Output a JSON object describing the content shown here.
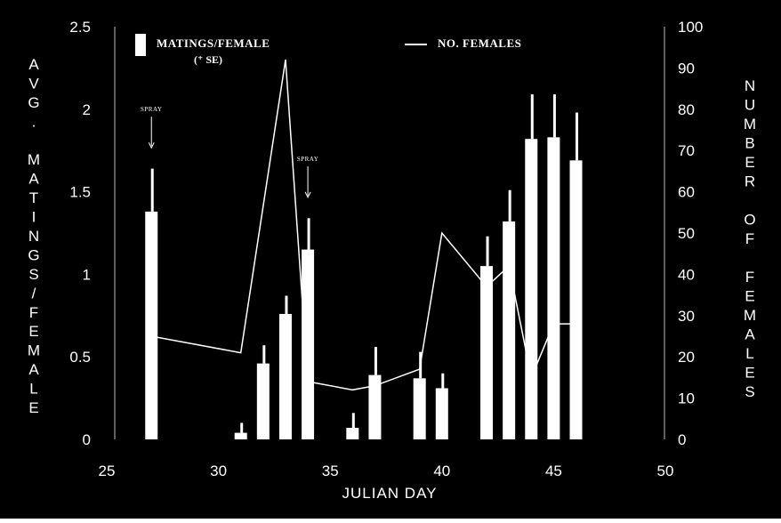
{
  "chart_data": {
    "type": "bar",
    "xlabel": "JULIAN DAY",
    "ylabel_left": "AVG. MATINGS/FEMALE",
    "ylabel_right": "NUMBER OF FEMALES",
    "xlim": [
      25,
      50
    ],
    "x_ticks": [
      "25",
      "30",
      "35",
      "40",
      "45",
      "50"
    ],
    "ylim_left": [
      0,
      2.5
    ],
    "y_ticks_left": [
      "0",
      "0.5",
      "1",
      "1.5",
      "2",
      "2.5"
    ],
    "ylim_right": [
      0,
      100
    ],
    "y_ticks_right": [
      "0",
      "10",
      "20",
      "30",
      "40",
      "50",
      "60",
      "70",
      "80",
      "90",
      "100"
    ],
    "grid": false,
    "legend_position": "top",
    "legend": {
      "bars_label": "MATINGS/FEMALE",
      "bars_sublabel": "(⁺ SE)",
      "line_label": "NO. FEMALES"
    },
    "annotations": [
      {
        "text": "SPRAY",
        "x": 27,
        "y": 1.75
      },
      {
        "text": "SPRAY",
        "x": 34,
        "y": 1.45
      }
    ],
    "series": [
      {
        "name": "MATINGS/FEMALE",
        "axis": "left",
        "kind": "bar",
        "x": [
          27,
          31,
          32,
          33,
          34,
          36,
          37,
          39,
          40,
          42,
          43,
          44,
          45,
          46
        ],
        "values": [
          1.38,
          0.04,
          0.46,
          0.76,
          1.15,
          0.07,
          0.39,
          0.37,
          0.31,
          1.05,
          1.32,
          1.82,
          1.83,
          1.69
        ],
        "se": [
          0.26,
          0.06,
          0.11,
          0.11,
          0.19,
          0.09,
          0.17,
          0.16,
          0.09,
          0.18,
          0.19,
          0.27,
          0.26,
          0.29
        ]
      },
      {
        "name": "NO. FEMALES",
        "axis": "right",
        "kind": "line",
        "x": [
          27,
          31,
          33,
          34,
          36,
          37,
          39,
          40,
          42,
          43,
          44,
          45,
          46
        ],
        "values": [
          25,
          21,
          92,
          14,
          12,
          13,
          17,
          50,
          37,
          42,
          15,
          28,
          28
        ]
      }
    ]
  }
}
